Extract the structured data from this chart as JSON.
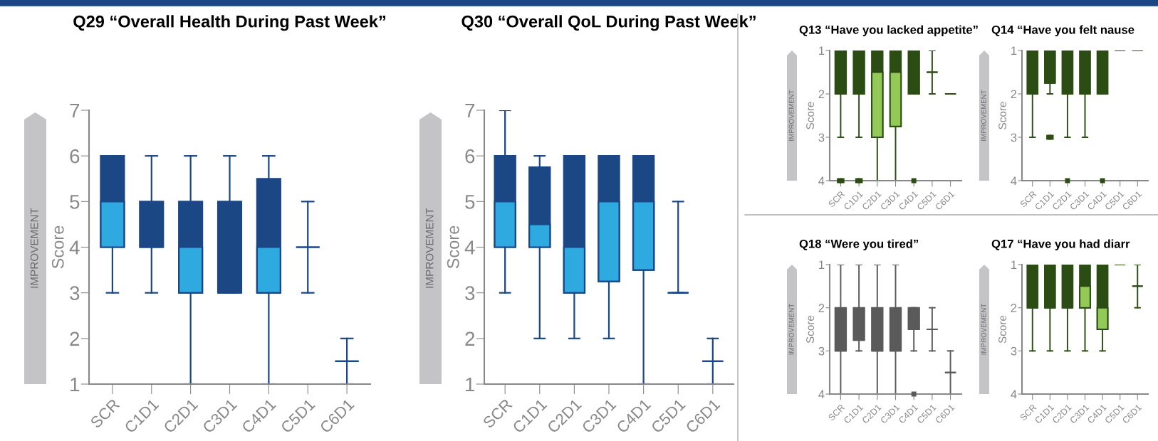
{
  "chart_data": [
    {
      "type": "box",
      "title": "Q29 “Overall Health During Past Week”",
      "ylabel": "Score",
      "annotations": [
        "IMPROVEMENT"
      ],
      "categories": [
        "SCR",
        "C1D1",
        "C2D1",
        "C3D1",
        "C4D1",
        "C5D1",
        "C6D1"
      ],
      "ylim": [
        1,
        7
      ],
      "yticks": [
        1,
        2,
        3,
        4,
        5,
        6,
        7
      ],
      "color": "#2eaae1",
      "colors": [
        "#1c4785",
        "#1c4785",
        "#1c4785",
        "#1c4785",
        "#1c4785",
        "#1c4785",
        "#1c4785"
      ],
      "marker": "square",
      "boxes": [
        {
          "low": 3,
          "q1": 4,
          "median": 5,
          "q3": 6,
          "high": 6
        },
        {
          "low": 3,
          "q1": 4,
          "median": 4,
          "q3": 5,
          "high": 6
        },
        {
          "low": 1,
          "q1": 3,
          "median": 4,
          "q3": 5,
          "high": 6
        },
        {
          "low": 3,
          "q1": 3,
          "median": 3,
          "q3": 5,
          "high": 6
        },
        {
          "low": 1,
          "q1": 3,
          "median": 4,
          "q3": 5.5,
          "high": 6
        },
        {
          "low": 3,
          "q1": 4,
          "median": 4,
          "q3": 4,
          "high": 5
        },
        {
          "low": 1,
          "q1": 1.5,
          "median": 1.5,
          "q3": 1.5,
          "high": 2
        }
      ]
    },
    {
      "type": "box",
      "title": "Q30 “Overall QoL During Past Week”",
      "ylabel": "Score",
      "annotations": [
        "IMPROVEMENT"
      ],
      "categories": [
        "SCR",
        "C1D1",
        "C2D1",
        "C3D1",
        "C4D1",
        "C5D1",
        "C6D1"
      ],
      "ylim": [
        1,
        7
      ],
      "yticks": [
        1,
        2,
        3,
        4,
        5,
        6,
        7
      ],
      "color": "#2eaae1",
      "colors": [
        "#1c4785",
        "#1c4785",
        "#1c4785",
        "#1c4785",
        "#1c4785",
        "#1c4785",
        "#1c4785"
      ],
      "marker": "square",
      "boxes": [
        {
          "low": 3,
          "q1": 4,
          "median": 5,
          "q3": 6,
          "high": 7
        },
        {
          "low": 2,
          "q1": 4,
          "median": 4.5,
          "q3": 5.75,
          "high": 6
        },
        {
          "low": 2,
          "q1": 3,
          "median": 4,
          "q3": 6,
          "high": 6
        },
        {
          "low": 2,
          "q1": 3.25,
          "median": 5,
          "q3": 6,
          "high": 6
        },
        {
          "low": 1,
          "q1": 3.5,
          "median": 5,
          "q3": 6,
          "high": 6
        },
        {
          "low": 3,
          "q1": 3,
          "median": 3,
          "q3": 3,
          "high": 5
        },
        {
          "low": 1,
          "q1": 1.5,
          "median": 1.5,
          "q3": 1.5,
          "high": 2
        }
      ]
    },
    {
      "type": "box",
      "title": "Q13 “Have you lacked appetite”",
      "ylabel": "Score",
      "annotations": [
        "IMPROVEMENT"
      ],
      "categories": [
        "SCR",
        "C1D1",
        "C2D1",
        "C3D1",
        "C4D1",
        "C5D1",
        "C6D1"
      ],
      "ylim": [
        4,
        1
      ],
      "yticks": [
        1,
        2,
        3,
        4
      ],
      "color": "#92c957",
      "colors": [
        "#2b4d14",
        "#2b4d14",
        "#2b4d14",
        "#2b4d14",
        "#2b4d14",
        "#2b4d14",
        "#2b4d14"
      ],
      "marker": "square",
      "boxes": [
        {
          "low": 1,
          "q1": 1,
          "median": 2,
          "q3": 2,
          "high": 3,
          "outliers": [
            4,
            4
          ]
        },
        {
          "low": 1,
          "q1": 1,
          "median": 2,
          "q3": 2,
          "high": 3,
          "outliers": [
            4,
            4
          ]
        },
        {
          "low": 1,
          "q1": 1,
          "median": 1.5,
          "q3": 3,
          "high": 4
        },
        {
          "low": 1,
          "q1": 1,
          "median": 1.5,
          "q3": 2.75,
          "high": 4
        },
        {
          "low": 1,
          "q1": 1,
          "median": 2,
          "q3": 2,
          "high": 2,
          "outliers": [
            4
          ]
        },
        {
          "low": 1,
          "q1": 1.5,
          "median": 1.5,
          "q3": 1.5,
          "high": 2
        },
        {
          "low": 2,
          "q1": 2,
          "median": 2,
          "q3": 2,
          "high": 2
        }
      ]
    },
    {
      "type": "box",
      "title": "Q14 “Have you felt nause",
      "ylabel": "Score",
      "annotations": [
        "IMPROVEMENT"
      ],
      "categories": [
        "SCR",
        "C1D1",
        "C2D1",
        "C3D1",
        "C4D1",
        "C5D1",
        "C6D1"
      ],
      "ylim": [
        4,
        1
      ],
      "yticks": [
        1,
        2,
        3,
        4
      ],
      "color": "#92c957",
      "colors": [
        "#2b4d14",
        "#2b4d14",
        "#2b4d14",
        "#2b4d14",
        "#2b4d14",
        "#2b4d14",
        "#2b4d14"
      ],
      "marker": "square",
      "boxes": [
        {
          "low": 1,
          "q1": 1,
          "median": 2,
          "q3": 2,
          "high": 3
        },
        {
          "low": 1,
          "q1": 1,
          "median": 1.75,
          "q3": 1.75,
          "high": 2,
          "outliers": [
            3,
            3
          ]
        },
        {
          "low": 1,
          "q1": 1,
          "median": 2,
          "q3": 2,
          "high": 3,
          "outliers": [
            4
          ]
        },
        {
          "low": 1,
          "q1": 1,
          "median": 2,
          "q3": 2,
          "high": 3
        },
        {
          "low": 1,
          "q1": 1,
          "median": 2,
          "q3": 2,
          "high": 2,
          "outliers": [
            4
          ]
        },
        {
          "low": 1,
          "q1": 1,
          "median": 1,
          "q3": 1,
          "high": 1
        },
        {
          "low": 1,
          "q1": 1,
          "median": 1,
          "q3": 1,
          "high": 1
        }
      ]
    },
    {
      "type": "box",
      "title": "Q18 “Were you tired”",
      "ylabel": "Score",
      "annotations": [
        "IMPROVEMENT"
      ],
      "categories": [
        "SCR",
        "C1D1",
        "C2D1",
        "C3D1",
        "C4D1",
        "C5D1",
        "C6D1"
      ],
      "ylim": [
        4,
        1
      ],
      "yticks": [
        1,
        2,
        3,
        4
      ],
      "color": "#5a5a5a",
      "colors": [
        "#5a5a5a",
        "#5a5a5a",
        "#5a5a5a",
        "#5a5a5a",
        "#5a5a5a",
        "#5a5a5a",
        "#5a5a5a"
      ],
      "marker": "square",
      "boxes": [
        {
          "low": 1,
          "q1": 2,
          "median": 3,
          "q3": 3,
          "high": 4
        },
        {
          "low": 1,
          "q1": 2,
          "median": 2.75,
          "q3": 2.75,
          "high": 3
        },
        {
          "low": 1,
          "q1": 2,
          "median": 3,
          "q3": 3,
          "high": 4
        },
        {
          "low": 1,
          "q1": 2,
          "median": 3,
          "q3": 3,
          "high": 4
        },
        {
          "low": 2,
          "q1": 2,
          "median": 2.5,
          "q3": 2.5,
          "high": 3,
          "outliers": [
            4
          ]
        },
        {
          "low": 2,
          "q1": 2.5,
          "median": 2.5,
          "q3": 2.5,
          "high": 3
        },
        {
          "low": 3,
          "q1": 3.5,
          "median": 3.5,
          "q3": 3.5,
          "high": 4
        }
      ]
    },
    {
      "type": "box",
      "title": "Q17 “Have you had diarr",
      "ylabel": "Score",
      "annotations": [
        "IMPROVEMENT"
      ],
      "categories": [
        "SCR",
        "C1D1",
        "C2D1",
        "C3D1",
        "C4D1",
        "C5D1",
        "C6D1"
      ],
      "ylim": [
        4,
        1
      ],
      "yticks": [
        1,
        2,
        3,
        4
      ],
      "color": "#92c957",
      "colors": [
        "#2b4d14",
        "#2b4d14",
        "#2b4d14",
        "#2b4d14",
        "#2b4d14",
        "#2b4d14",
        "#2b4d14"
      ],
      "marker": "square",
      "boxes": [
        {
          "low": 1,
          "q1": 1,
          "median": 2,
          "q3": 2,
          "high": 3
        },
        {
          "low": 1,
          "q1": 1,
          "median": 2,
          "q3": 2,
          "high": 3
        },
        {
          "low": 1,
          "q1": 1,
          "median": 2,
          "q3": 2,
          "high": 3
        },
        {
          "low": 1,
          "q1": 1,
          "median": 1.5,
          "q3": 2,
          "high": 3
        },
        {
          "low": 1,
          "q1": 1,
          "median": 2,
          "q3": 2.5,
          "high": 3
        },
        {
          "low": 1,
          "q1": 1,
          "median": 1,
          "q3": 1,
          "high": 1
        },
        {
          "low": 1,
          "q1": 1.5,
          "median": 1.5,
          "q3": 1.5,
          "high": 2
        }
      ]
    }
  ]
}
